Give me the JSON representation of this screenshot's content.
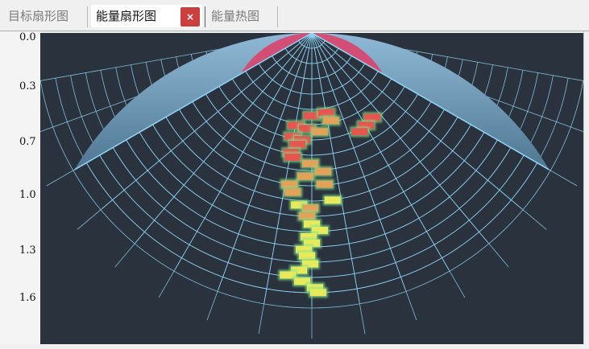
{
  "tabs": [
    {
      "label": "目标扇形图",
      "active": false
    },
    {
      "label": "能量扇形图",
      "active": true
    },
    {
      "label": "能量热图",
      "active": false
    }
  ],
  "close_label": "×",
  "chart_data": {
    "type": "heatmap",
    "yticks": [
      "0.0",
      "0.3",
      "0.7",
      "1.0",
      "1.3",
      "1.6"
    ],
    "colors": {
      "background": "#2a333d",
      "sector_top": "#8fb9d6",
      "sector_bottom": "#4f7792",
      "grid": "#8fd3f5",
      "near_zone": "#d9456d",
      "cell_high": "#e6554e",
      "cell_mid": "#e3a25a",
      "cell_low": "#e8ea5c",
      "cell_glow": "#7fe38a"
    },
    "cells": [
      {
        "range": 0.52,
        "offset": 0.0,
        "level": "high"
      },
      {
        "range": 0.5,
        "offset": 0.09,
        "level": "high"
      },
      {
        "range": 0.55,
        "offset": 0.12,
        "level": "mid"
      },
      {
        "range": 0.58,
        "offset": -0.1,
        "level": "high"
      },
      {
        "range": 0.6,
        "offset": -0.03,
        "level": "high"
      },
      {
        "range": 0.62,
        "offset": 0.05,
        "level": "mid"
      },
      {
        "range": 0.65,
        "offset": -0.12,
        "level": "high"
      },
      {
        "range": 0.67,
        "offset": -0.06,
        "level": "high"
      },
      {
        "range": 0.7,
        "offset": -0.09,
        "level": "high"
      },
      {
        "range": 0.75,
        "offset": -0.13,
        "level": "high"
      },
      {
        "range": 0.78,
        "offset": -0.12,
        "level": "high"
      },
      {
        "range": 0.82,
        "offset": -0.01,
        "level": "mid"
      },
      {
        "range": 0.87,
        "offset": 0.07,
        "level": "mid"
      },
      {
        "range": 0.9,
        "offset": -0.04,
        "level": "mid"
      },
      {
        "range": 0.95,
        "offset": -0.14,
        "level": "mid"
      },
      {
        "range": 0.95,
        "offset": 0.08,
        "level": "mid"
      },
      {
        "range": 1.0,
        "offset": -0.12,
        "level": "mid"
      },
      {
        "range": 1.05,
        "offset": 0.13,
        "level": "low"
      },
      {
        "range": 1.08,
        "offset": -0.08,
        "level": "low"
      },
      {
        "range": 1.1,
        "offset": -0.01,
        "level": "mid"
      },
      {
        "range": 1.15,
        "offset": -0.03,
        "level": "mid"
      },
      {
        "range": 1.2,
        "offset": 0.0,
        "level": "low"
      },
      {
        "range": 1.24,
        "offset": 0.05,
        "level": "low"
      },
      {
        "range": 1.28,
        "offset": -0.02,
        "level": "low"
      },
      {
        "range": 1.32,
        "offset": 0.0,
        "level": "low"
      },
      {
        "range": 1.36,
        "offset": -0.05,
        "level": "low"
      },
      {
        "range": 1.4,
        "offset": -0.03,
        "level": "low"
      },
      {
        "range": 1.45,
        "offset": -0.01,
        "level": "low"
      },
      {
        "range": 1.49,
        "offset": -0.08,
        "level": "low"
      },
      {
        "range": 1.52,
        "offset": -0.15,
        "level": "low"
      },
      {
        "range": 1.56,
        "offset": -0.06,
        "level": "low"
      },
      {
        "range": 1.6,
        "offset": 0.02,
        "level": "low"
      },
      {
        "range": 1.63,
        "offset": 0.04,
        "level": "low"
      }
    ],
    "red_cells_right": [
      {
        "range": 0.53,
        "offset": 0.38
      },
      {
        "range": 0.58,
        "offset": 0.34
      },
      {
        "range": 0.62,
        "offset": 0.3
      }
    ]
  }
}
